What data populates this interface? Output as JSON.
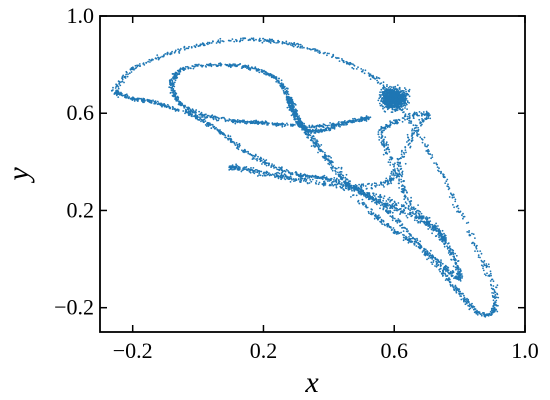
{
  "chart_data": {
    "type": "scatter",
    "title": "",
    "xlabel": "x",
    "ylabel": "y",
    "xlim": [
      -0.3,
      1.0
    ],
    "ylim": [
      -0.3,
      1.0
    ],
    "xticks": [
      -0.2,
      0.2,
      0.6,
      1.0
    ],
    "xtick_labels": [
      "−0.2",
      "0.2",
      "0.6",
      "1.0"
    ],
    "yticks": [
      -0.2,
      0.2,
      0.6,
      1.0
    ],
    "ytick_labels": [
      "−0.2",
      "0.2",
      "0.6",
      "1.0"
    ],
    "grid": false,
    "legend": "none",
    "series": [
      {
        "color": "#1f77b4",
        "description_points": "dense chaotic attractor; outline sampled",
        "x": [
          -0.25,
          -0.2,
          -0.1,
          0.0,
          0.1,
          0.2,
          0.3,
          0.4,
          0.5,
          0.56,
          0.62,
          0.68,
          0.74,
          0.8,
          0.86,
          0.9,
          0.91,
          0.9,
          0.87,
          0.84,
          0.8,
          0.75,
          0.7,
          0.65,
          0.6,
          0.55,
          0.5,
          0.45,
          0.4,
          0.35,
          0.3,
          0.25,
          0.2,
          0.15,
          0.1,
          0.05,
          0.0,
          -0.05,
          -0.1,
          -0.15,
          -0.2,
          -0.24
        ],
        "y": [
          0.7,
          0.78,
          0.84,
          0.88,
          0.9,
          0.9,
          0.88,
          0.84,
          0.78,
          0.72,
          0.62,
          0.5,
          0.36,
          0.2,
          0.02,
          -0.1,
          -0.18,
          -0.22,
          -0.23,
          -0.2,
          -0.14,
          -0.06,
          0.02,
          0.1,
          0.17,
          0.23,
          0.28,
          0.31,
          0.33,
          0.34,
          0.35,
          0.37,
          0.4,
          0.44,
          0.49,
          0.54,
          0.58,
          0.61,
          0.63,
          0.65,
          0.66,
          0.68
        ]
      }
    ]
  }
}
